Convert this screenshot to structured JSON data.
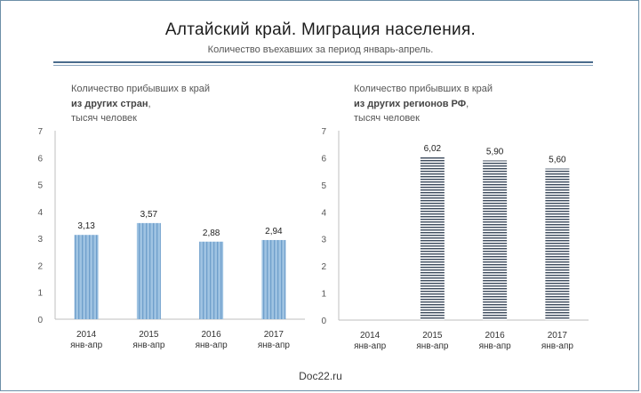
{
  "header": {
    "title": "Алтайский край. Миграция населения.",
    "subtitle": "Количество въехавших за период январь-апрель."
  },
  "footer": {
    "source": "Doc22.ru"
  },
  "chart_data": [
    {
      "type": "bar",
      "caption_line1": "Количество прибывших в край",
      "caption_bold": "из других стран",
      "caption_suffix": ",",
      "caption_line3": "тысяч человек",
      "categories": [
        "2014",
        "2015",
        "2016",
        "2017"
      ],
      "category_sublabel": "янв-апр",
      "values": [
        3.13,
        3.57,
        2.88,
        2.94
      ],
      "value_labels": [
        "3,13",
        "3,57",
        "2,88",
        "2,94"
      ],
      "yticks": [
        "0",
        "1",
        "2",
        "3",
        "4",
        "5",
        "6",
        "7"
      ],
      "ylim": [
        0,
        7
      ],
      "grid": false,
      "bar_color": "#9fc3e2",
      "bar_stripe_color": "#6f9fcb"
    },
    {
      "type": "bar",
      "caption_line1": "Количество прибывших в край",
      "caption_bold": "из других регионов РФ",
      "caption_suffix": ",",
      "caption_line3": "тысяч человек",
      "categories": [
        "2014",
        "2015",
        "2016",
        "2017"
      ],
      "category_sublabel": "янв-апр",
      "values": [
        null,
        6.02,
        5.9,
        5.6
      ],
      "value_labels": [
        "",
        "6,02",
        "5,90",
        "5,60"
      ],
      "yticks": [
        "0",
        "1",
        "2",
        "3",
        "4",
        "5",
        "6",
        "7"
      ],
      "ylim": [
        0,
        7
      ],
      "grid": false,
      "bar_color": "#ffffff",
      "bar_stripe_color": "#3c4a5c"
    }
  ]
}
